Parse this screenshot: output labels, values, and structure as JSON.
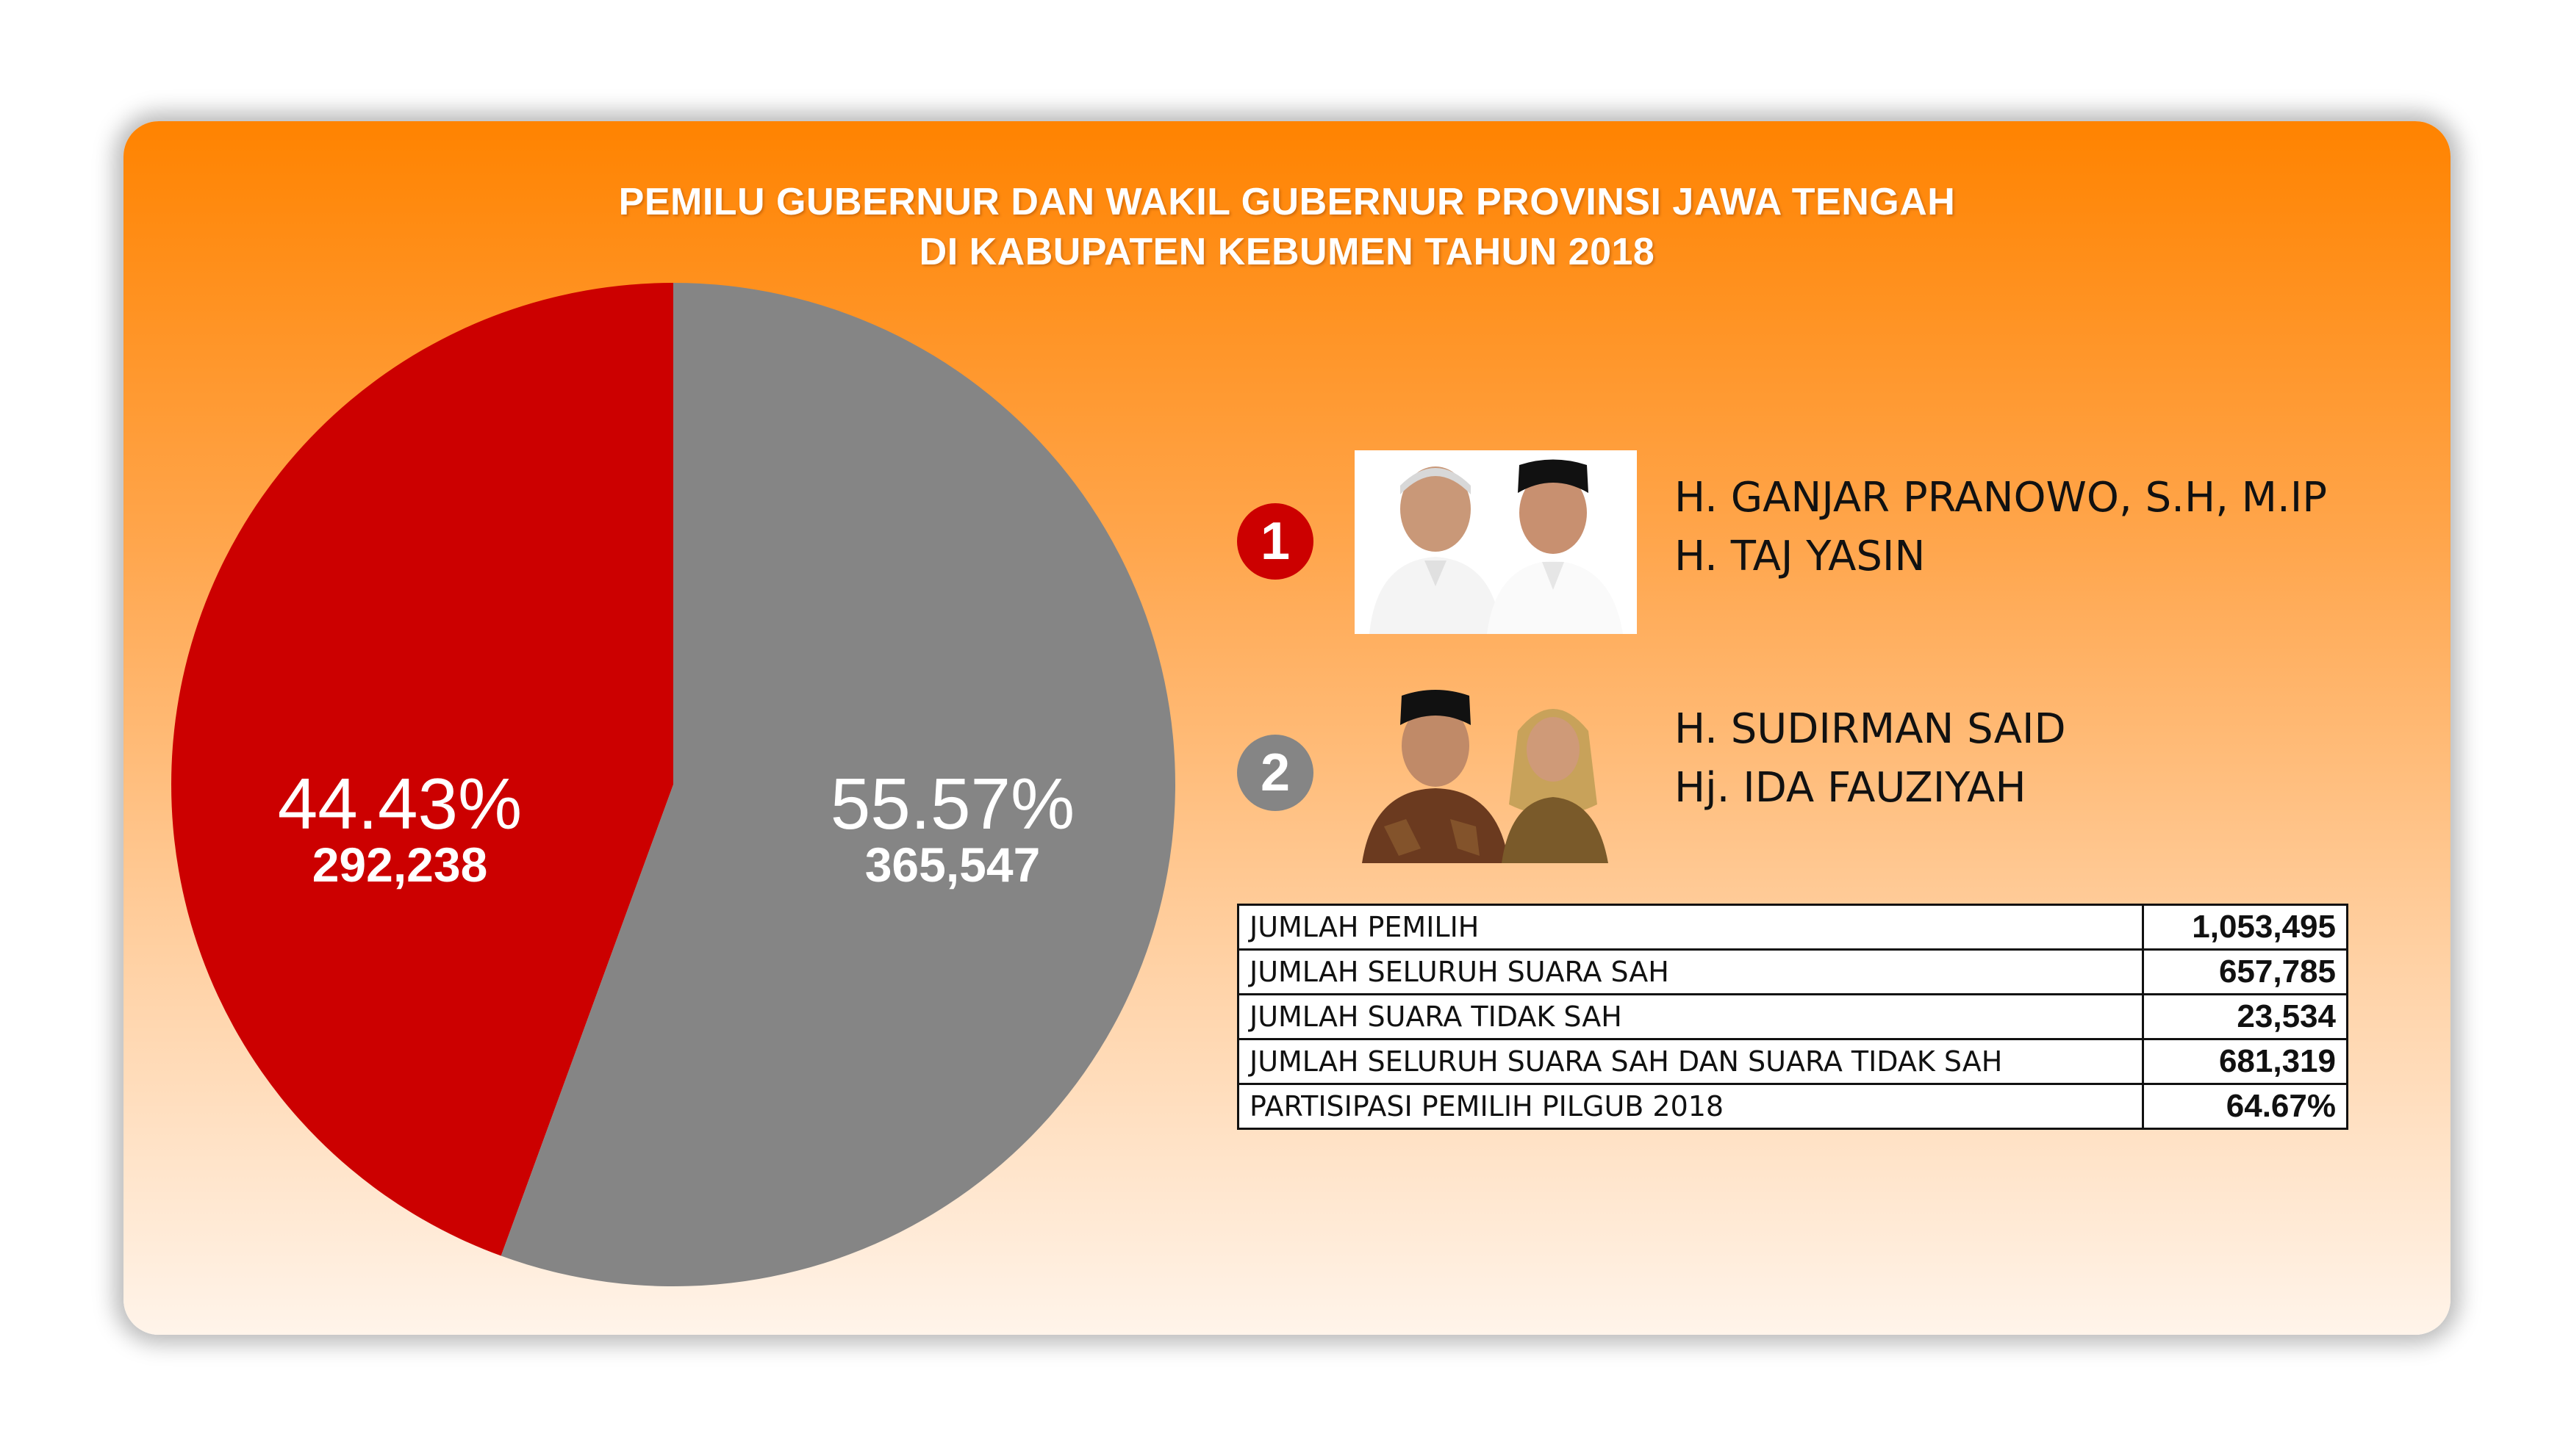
{
  "title": {
    "line1": "PEMILU GUBERNUR DAN WAKIL GUBERNUR PROVINSI JAWA TENGAH",
    "line2": "DI KABUPATEN KEBUMEN TAHUN 2018"
  },
  "chart_data": {
    "type": "pie",
    "slices": [
      {
        "label": "1",
        "percent_label": "44.43%",
        "votes_label": "292,238",
        "value": 292238,
        "percent": 44.43,
        "color": "#cc0000"
      },
      {
        "label": "2",
        "percent_label": "55.57%",
        "votes_label": "365,547",
        "value": 365547,
        "percent": 55.57,
        "color": "#858585"
      }
    ]
  },
  "candidates": [
    {
      "number": "1",
      "badge_color": "#cc0000",
      "name1": "H. GANJAR PRANOWO, S.H, M.IP",
      "name2": "H. TAJ YASIN"
    },
    {
      "number": "2",
      "badge_color": "#858585",
      "name1": "H. SUDIRMAN SAID",
      "name2": "Hj. IDA FAUZIYAH"
    }
  ],
  "stats": [
    {
      "label": "JUMLAH PEMILIH",
      "value": "1,053,495"
    },
    {
      "label": "JUMLAH SELURUH SUARA SAH",
      "value": "657,785"
    },
    {
      "label": "JUMLAH SUARA TIDAK SAH",
      "value": "23,534"
    },
    {
      "label": "JUMLAH SELURUH SUARA SAH DAN SUARA TIDAK SAH",
      "value": "681,319"
    },
    {
      "label": "PARTISIPASI PEMILIH PILGUB 2018",
      "value": "64.67%"
    }
  ]
}
